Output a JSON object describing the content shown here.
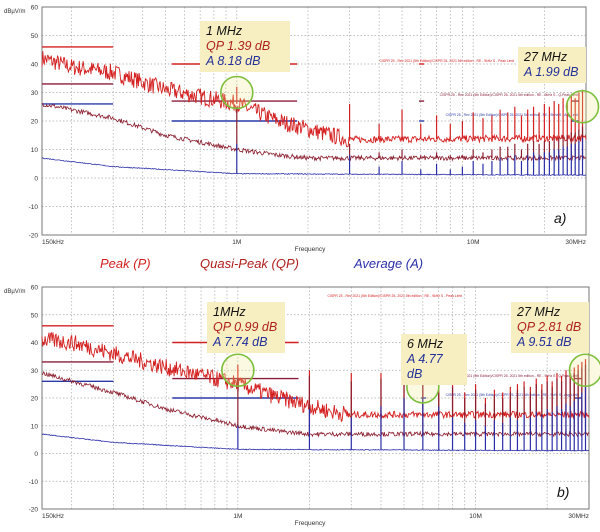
{
  "legend": {
    "peak": "Peak (P)",
    "qp": "Quasi-Peak (QP)",
    "avg": "Average (A)"
  },
  "colors": {
    "peak": "#d42020",
    "qp": "#8a1e2e",
    "avg": "#2a2fa8",
    "limit_peak": "#d42020",
    "limit_qp": "#8a1e3a",
    "limit_avg": "#2a3aa8",
    "circle": "#7dbf3a",
    "box": "#f7efc2"
  },
  "limit_labels": {
    "peak": "CISPR 25 - Rev 2021 (5th Edition)/CISPR 25- 2021 5th edition - RE - 9kHz S - Peak Limit",
    "qp": "CISPR 25 - Rev 2021 (5th Edition)/CISPR 25- 2021 5th edition - RE - 9kHz S - Q-Peak Limit",
    "avg": "CISPR 25 - Rev 2021 (5th Edition)/CISPR 25- 2021 5th edition - RE - 9kHz S - Avg Limit"
  },
  "chart_data": [
    {
      "type": "line",
      "panel_label": "a)",
      "xlabel": "Frequency",
      "ylabel": "dBµV/m",
      "xscale": "log",
      "xlim_MHz": [
        0.15,
        30
      ],
      "ylim": [
        -20,
        60
      ],
      "yticks": [
        "60",
        "50",
        "40",
        "30",
        "20",
        "10",
        "0",
        "-10",
        "-20"
      ],
      "xtick_labels": {
        "min": "150kHz",
        "1": "1M",
        "10": "10M",
        "max": "30MHz"
      },
      "grid": true,
      "limits": [
        {
          "f": [
            0.15,
            0.3
          ],
          "peak": 46,
          "qp": 33,
          "avg": 26
        },
        {
          "f": [
            0.53,
            1.8
          ],
          "peak": 40,
          "qp": 27,
          "avg": 20
        },
        {
          "f": [
            5.9,
            6.2
          ],
          "peak": 40,
          "qp": 27,
          "avg": 20
        },
        {
          "f": [
            26,
            28
          ],
          "qp": 27,
          "avg": 20
        }
      ],
      "series": [
        {
          "name": "Peak (P)",
          "f_MHz": [
            0.15,
            0.2,
            0.3,
            0.5,
            1,
            1.5,
            2.5,
            3,
            30
          ],
          "dB": [
            42,
            39,
            37,
            31,
            26,
            20,
            15,
            13.5,
            14
          ]
        },
        {
          "name": "Quasi-Peak (QP)",
          "f_MHz": [
            0.15,
            0.3,
            0.5,
            1,
            1.5,
            2,
            30
          ],
          "dB": [
            26,
            21,
            15,
            10,
            8,
            7,
            7
          ]
        },
        {
          "name": "Average (A)",
          "f_MHz": [
            0.15,
            0.3,
            1,
            30
          ],
          "dB": [
            7,
            4,
            1.5,
            1
          ]
        }
      ],
      "harmonics": {
        "f_MHz": [
          1,
          3,
          4,
          5,
          6,
          7,
          8,
          9,
          10,
          11,
          12,
          13,
          14,
          15,
          16,
          17,
          18,
          19,
          20,
          21,
          22,
          23,
          24,
          25,
          26,
          27,
          28,
          29
        ],
        "peak": [
          32,
          26,
          19,
          24,
          19,
          22,
          19,
          20,
          23,
          21,
          22,
          24,
          23,
          25,
          22,
          24,
          25,
          23,
          26,
          25,
          27,
          26,
          28,
          27,
          29,
          28,
          30,
          31
        ],
        "qp": [
          25,
          12,
          9,
          10,
          8,
          9,
          8,
          8,
          10,
          9,
          10,
          11,
          11,
          12,
          10,
          12,
          13,
          12,
          13,
          13,
          14,
          14,
          15,
          15,
          16,
          16,
          17,
          18
        ],
        "avg": [
          12,
          8,
          4,
          6,
          3,
          5,
          3,
          4,
          6,
          5,
          6,
          7,
          7,
          8,
          6,
          8,
          9,
          8,
          9,
          9,
          10,
          10,
          11,
          11,
          12,
          12,
          13,
          14
        ]
      },
      "annotations": [
        {
          "freq": "1 MHz",
          "qp": "QP 1.39 dB",
          "avg": "A 8.18 dB",
          "circle_MHz": 1,
          "circle_dB": 30
        },
        {
          "freq": "27 MHz",
          "avg": "A 1.99 dB",
          "circle_MHz": 29,
          "circle_dB": 25
        }
      ]
    },
    {
      "type": "line",
      "panel_label": "b)",
      "xlabel": "Frequency",
      "ylabel": "dBµV/m",
      "xscale": "log",
      "xlim_MHz": [
        0.15,
        30
      ],
      "ylim": [
        -20,
        60
      ],
      "yticks": [
        "60",
        "50",
        "40",
        "30",
        "20",
        "10",
        "0",
        "-10",
        "-20"
      ],
      "xtick_labels": {
        "min": "150kHz",
        "1": "1M",
        "10": "10M",
        "max": "30MHz"
      },
      "grid": true,
      "limits": [
        {
          "f": [
            0.15,
            0.3
          ],
          "peak": 46,
          "qp": 33,
          "avg": 26
        },
        {
          "f": [
            0.53,
            1.8
          ],
          "peak": 40,
          "qp": 27,
          "avg": 20
        },
        {
          "f": [
            5.9,
            6.2
          ],
          "qp": 27,
          "avg": 20
        },
        {
          "f": [
            26,
            28
          ],
          "qp": 27,
          "avg": 20
        }
      ],
      "series": [
        {
          "name": "Peak (P)",
          "f_MHz": [
            0.15,
            0.2,
            0.3,
            0.5,
            1,
            1.5,
            2.5,
            3,
            30
          ],
          "dB": [
            41,
            40,
            36,
            31,
            25,
            20,
            15,
            14,
            14
          ]
        },
        {
          "name": "Quasi-Peak (QP)",
          "f_MHz": [
            0.15,
            0.3,
            0.5,
            1,
            1.5,
            2,
            30
          ],
          "dB": [
            29,
            22,
            16,
            10,
            8,
            7,
            7
          ]
        },
        {
          "name": "Average (A)",
          "f_MHz": [
            0.15,
            0.3,
            1,
            30
          ],
          "dB": [
            7,
            4,
            1.5,
            1
          ]
        }
      ],
      "harmonics": {
        "f_MHz": [
          1,
          2,
          3,
          4,
          5,
          6,
          7,
          8,
          9,
          10,
          11,
          12,
          13,
          14,
          15,
          16,
          17,
          18,
          19,
          20,
          21,
          22,
          23,
          24,
          25,
          26,
          27,
          28,
          29
        ],
        "peak": [
          32,
          30,
          29,
          29,
          28,
          27,
          24,
          26,
          22,
          25,
          20,
          23,
          22,
          24,
          25,
          26,
          24,
          27,
          25,
          28,
          26,
          29,
          28,
          30,
          29,
          31,
          32,
          33,
          34
        ],
        "qp": [
          27,
          28,
          26,
          27,
          26,
          26,
          22,
          24,
          20,
          23,
          18,
          21,
          20,
          22,
          23,
          24,
          22,
          25,
          23,
          26,
          24,
          27,
          26,
          28,
          27,
          29,
          30,
          31,
          32
        ],
        "avg": [
          10,
          16,
          13,
          17,
          20,
          20,
          17,
          13,
          11,
          12,
          10,
          12,
          11,
          13,
          12,
          14,
          13,
          15,
          14,
          16,
          15,
          17,
          16,
          18,
          17,
          19,
          20,
          22,
          24
        ]
      },
      "annotations": [
        {
          "freq": "1MHz",
          "qp": "QP 0.99 dB",
          "avg": "A 7.74 dB",
          "circle_MHz": 1,
          "circle_dB": 30
        },
        {
          "freq": "6 MHz",
          "avg": "A 4.77 dB",
          "circle_MHz": 6,
          "circle_dB": 24
        },
        {
          "freq": "27 MHz",
          "qp": "QP 2.81 dB",
          "avg": "A 9.51 dB",
          "circle_MHz": 29,
          "circle_dB": 30
        }
      ]
    }
  ]
}
